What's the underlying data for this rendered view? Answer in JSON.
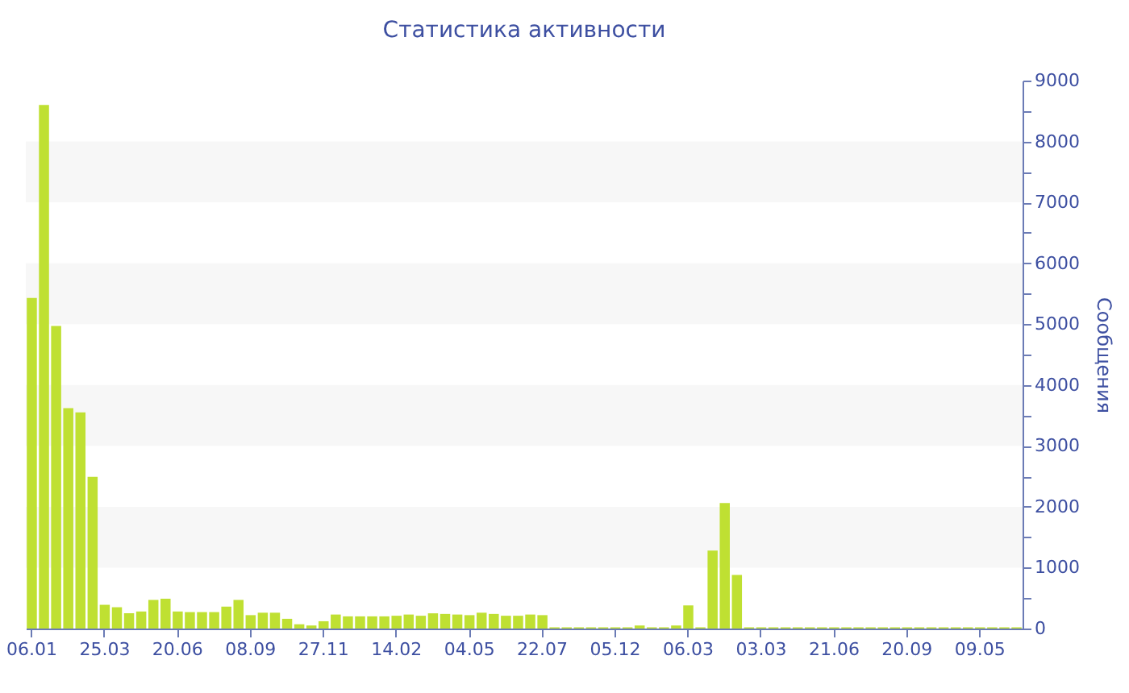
{
  "chart_data": {
    "type": "bar",
    "title": "Статистика активности",
    "ylabel": "Сообщения",
    "categories": [
      "06.01",
      null,
      null,
      null,
      null,
      null,
      "25.03",
      null,
      null,
      null,
      null,
      null,
      "20.06",
      null,
      null,
      null,
      null,
      null,
      "08.09",
      null,
      null,
      null,
      null,
      null,
      "27.11",
      null,
      null,
      null,
      null,
      null,
      "14.02",
      null,
      null,
      null,
      null,
      null,
      "04.05",
      null,
      null,
      null,
      null,
      null,
      "22.07",
      null,
      null,
      null,
      null,
      null,
      "05.12",
      null,
      null,
      null,
      null,
      null,
      "06.03",
      null,
      null,
      null,
      null,
      null,
      "03.03",
      null,
      null,
      null,
      null,
      null,
      "21.06",
      null,
      null,
      null,
      null,
      null,
      "20.09",
      null,
      null,
      null,
      null,
      null,
      "09.05",
      null,
      null,
      null
    ],
    "series": [
      {
        "color": "#bfe032",
        "values": [
          5430,
          8600,
          4970,
          3620,
          3550,
          2490,
          390,
          350,
          250,
          280,
          470,
          490,
          280,
          270,
          270,
          270,
          360,
          470,
          220,
          260,
          260,
          160,
          70,
          50,
          120,
          230,
          200,
          200,
          200,
          200,
          210,
          230,
          210,
          250,
          240,
          230,
          220,
          260,
          240,
          210,
          210,
          230,
          220,
          20,
          20,
          20,
          20,
          20,
          20,
          20,
          50,
          20,
          20,
          50,
          380,
          20,
          1280,
          2060,
          880,
          20,
          20,
          20,
          20,
          20,
          20,
          20,
          20,
          20,
          20,
          20,
          20,
          20,
          20,
          20,
          20,
          20,
          20,
          20,
          20,
          20,
          20,
          20
        ]
      }
    ],
    "ylim": [
      0,
      9000
    ],
    "yticks": [
      0,
      {
        "value": 500,
        "label": null
      },
      1000,
      {
        "value": 1500,
        "label": null
      },
      2000,
      {
        "value": 2500,
        "label": null
      },
      3000,
      {
        "value": 3500,
        "label": null
      },
      4000,
      {
        "value": 4500,
        "label": null
      },
      5000,
      {
        "value": 5500,
        "label": null
      },
      6000,
      {
        "value": 6500,
        "label": null
      },
      7000,
      {
        "value": 7500,
        "label": null
      },
      8000,
      {
        "value": 8500,
        "label": null
      },
      9000
    ],
    "bands": [
      {
        "axis": "y",
        "from": 1000,
        "to": 2000,
        "color": "#f7f7f7"
      },
      {
        "axis": "y",
        "from": 3000,
        "to": 4000,
        "color": "#f7f7f7"
      },
      {
        "axis": "y",
        "from": 5000,
        "to": 6000,
        "color": "#f7f7f7"
      },
      {
        "axis": "y",
        "from": 7000,
        "to": 8000,
        "color": "#f7f7f7"
      }
    ]
  }
}
